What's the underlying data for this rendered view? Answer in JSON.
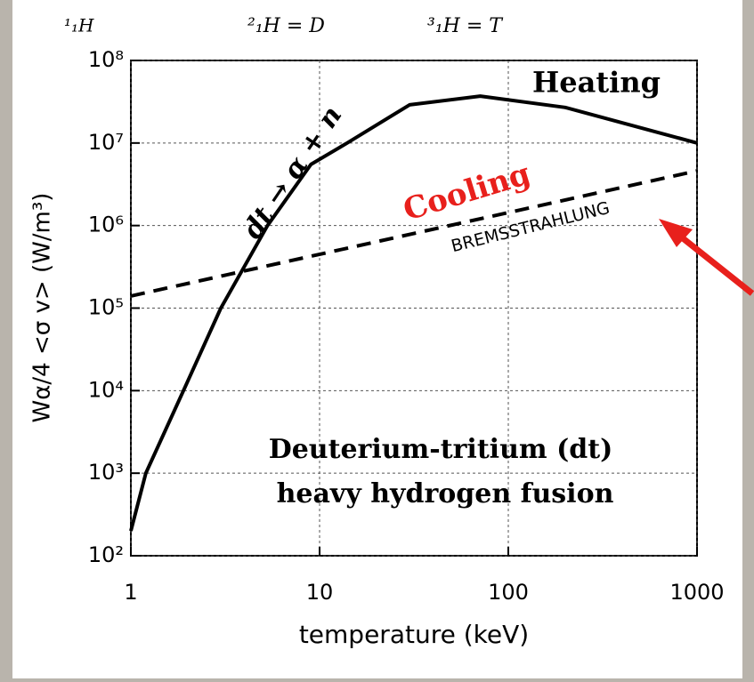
{
  "chart_data": {
    "type": "line",
    "xlabel": "temperature (keV)",
    "ylabel": "Wα/4 <σ v> (W/m³)",
    "log_x": true,
    "log_y": true,
    "grid": true,
    "xlim": [
      1,
      1000
    ],
    "ylim": [
      100,
      100000000
    ],
    "xticks": [
      1,
      10,
      100,
      1000
    ],
    "yticks": [
      {
        "value": 100,
        "label": "10²"
      },
      {
        "value": 1000,
        "label": "10³"
      },
      {
        "value": 10000,
        "label": "10⁴"
      },
      {
        "value": 100000,
        "label": "10⁵"
      },
      {
        "value": 1000000,
        "label": "10⁶"
      },
      {
        "value": 10000000,
        "label": "10⁷"
      },
      {
        "value": 100000000,
        "label": "10⁸"
      }
    ],
    "series": [
      {
        "name": "Heating",
        "color": "#000000",
        "dash": false,
        "x": [
          1,
          1.2,
          1.9,
          3,
          5.3,
          9,
          14,
          30,
          71,
          200,
          1000
        ],
        "values": [
          200,
          1000,
          10000,
          100000,
          1000000,
          5500000,
          10000000,
          29000000,
          37000000,
          27000000,
          10000000
        ]
      },
      {
        "name": "BREMSSTRAHLUNG",
        "color": "#000000",
        "dash": true,
        "x": [
          1,
          1000
        ],
        "values": [
          140000,
          4600000
        ]
      }
    ],
    "annotations": {
      "top_labels": [
        "¹₁H",
        "²₁H = D",
        "³₁H = T"
      ],
      "cooling": "Cooling",
      "reaction": "dt → α + n",
      "fusion_line1": "Deuterium-tritium (dt)",
      "fusion_line2": "heavy hydrogen fusion"
    }
  }
}
